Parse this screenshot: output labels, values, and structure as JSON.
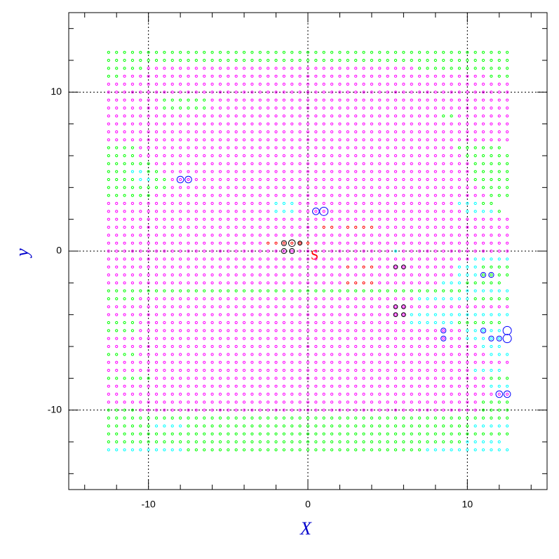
{
  "chart_data": {
    "type": "scatter",
    "xlabel": "X",
    "ylabel": "y",
    "annotation": "S",
    "xlim": [
      -15,
      15
    ],
    "ylim": [
      -15,
      15
    ],
    "xticks": [
      -10,
      0,
      10
    ],
    "yticks": [
      -10,
      0,
      10
    ],
    "xminorticks": [
      -14,
      -12,
      -8,
      -6,
      -4,
      -2,
      2,
      4,
      6,
      8,
      12,
      14
    ],
    "yminorticks": [
      -14,
      -12,
      -8,
      -6,
      -4,
      -2,
      2,
      4,
      6,
      8,
      12,
      14
    ],
    "grid": true,
    "classes": {
      "g": "#00ff00",
      "m": "#ff00ff",
      "c": "#00ffff",
      "r": "#ff0000"
    },
    "points": {
      "x": [
        -12.5,
        -12,
        -11.5,
        -11,
        -10.5,
        -10,
        -9.5,
        -9,
        -8.5,
        -8,
        -7.5,
        -7,
        -6.5,
        -6,
        -5.5,
        -5,
        -4.5,
        -4,
        -3.5,
        -3,
        -2.5,
        -2,
        -1.5,
        -1,
        -0.5,
        0,
        0.5,
        1,
        1.5,
        2,
        2.5,
        3,
        3.5,
        4,
        4.5,
        5,
        5.5,
        6,
        6.5,
        7,
        7.5,
        8,
        8.5,
        9,
        9.5,
        10,
        10.5,
        11,
        11.5,
        12,
        12.5
      ],
      "y": [
        12.5,
        12,
        11.5,
        11,
        10.5,
        10,
        9.5,
        9,
        8.5,
        8,
        7.5,
        7,
        6.5,
        6,
        5.5,
        5,
        4.5,
        4,
        3.5,
        3,
        2.5,
        2,
        1.5,
        1,
        0.5,
        0,
        -0.5,
        -1,
        -1.5,
        -2,
        -2.5,
        -3,
        -3.5,
        -4,
        -4.5,
        -5,
        -5.5,
        -6,
        -6.5,
        -7,
        -7.5,
        -8,
        -8.5,
        -9,
        -9.5,
        -10,
        -10.5,
        -11,
        -11.5,
        -12,
        -12.5
      ],
      "rows": [
        "ggggggggggggggggggggggggggggggggggggggggggggggggggg",
        "ggggggggggggggggggggggggggggggggggggggggggggggggggg",
        "gggggmmmmmmmmmmmmmmmmmmmmmmmmmmmmmmmmmmgggggggggggggg",
        "ggmmmmmmmmmmmmmmmmmmmmmmmmmmmmmmmmmmmmmmmmmmmmmmggg",
        "mmmmmmmmmmmmmmmmmmmmmmmmmmmmmmmmmmmmmmmmmmmmmmmmmmm",
        "mmmmmmmmmmmmmmmmmmmmmmmmmmmmmmmmmmmmmmmmmmmmmmmmmmm",
        "mmmmmmmggggggmmmmmmmmmmmmmmmmmmmmmmmmmmmmmmmmmmmmmm",
        "mmmmmmmggggggmmmmmmmmmmmmmmmmmmmmmmmmmmmmmmmmmmmmmm",
        "mmmmmmmmmmmmmmmmmmmmmmmmmmmmmmmmmmmmmmmmmmggmmmmmmm",
        "mmmmmmmmmmmmmmmmmmmmmmmmmmmmmmmmmmmmmmmmmmmmmmmmmmm",
        "mmmmmmmmmmmmmmmmmmmmmmmmmmmmmmmmmmmmmmmmmmmmmmmmmmm",
        "mmmmmmmmmmmmmmmmmmmmmmmmmmmmmmmmmmmmmmmmmmmmmmmmmmm",
        "ggggmmmmmmmmmmmmmmmmmmmmmmmmmmmmmmmmmmmmmmmmgggggg",
        "ggggmmmmmmmmmmmmmmmmmmmmmmmmmmmmmmmmmmmmmmmmmgggggg",
        "ggggggmmmmmmmmmmmmmmmmmmmmmmmmmmmmmmmmmmmmmmmmggggg",
        "gggccggmmmmmmmmmmmmmmmmmmmmmmmmmmmmmmmmmmmmmmmggggg",
        "ggggccggmmmmmmmmmmmmmmmmmmmmmmmmmmmmmmmmmmmmmmggggg",
        "ggggggggmmmmmmmmmmmmmmmmmmmmmmmmmmmmmmmmmmmmmmmgggg",
        "ggggggmmmmmmmmmmmmmmmmmmmmmmmmmmmmmmmmmmmmmmmmmmggg",
        "mmmmmmmmmmmmmmmmmmmmmcccmmmmmmmmmmmmmmmmmmmmcccgg",
        "mmmmmmmmmmmmmmmmmmmmmcccmmmmmmmmmmmmmmmmmmmmmccccg",
        "mmmmmmmmmmmmmmmmmmmmmmmmmmmmmmmmmmmmmmmmmmmmmmmmmmm",
        "mmmmmmmmmmmmmmmmmmmmmmmmmmmrrmrrrrmmmmmmmmmmmmmmmmm",
        "mmmmmmmmmmmmmmmmmmmmmmmmmmmmmmmmmmmmmmmmmmmmmmmmmmm",
        "mmmmmmmmmmmmmmmmmmmmrrrrrrmmmmmmmmmmmmmmmmmmmmmmmmm",
        "mmmmmmmmmmmmmmmmmmmmmmmmmmmmmmmmmmmmcmmmmmmmmmmmmmm",
        "mmmmmmmmmmmmmmmmmmmmmmmmmmmmmmmmmmmmmmmmmmmmmmccccc",
        "mmmmmmmmmmmmmmmmmmmmmmmmmmmmmmrmrrmmmmmmmmmmcccggggg",
        "mmmmmmmmmmmmmmmmmmmmmmmmmmmmmmmmmmmmmmmmmmmmcccgggg",
        "mmmmmmmmmmmmmmmmmmmmmmmmmmmmmmrrrrmmmmmmmmcccggggg",
        "gggggggggggggggggggggggggggggggggggggggggggggcccccc",
        "ggggmmmmmmmmmmmmmmmmmmmmmmmmmmmmmmmmmmmcccccccggggg",
        "mmmmmmmmmmmmmmmmmmmmmmmmmmmmmmmmmmmmmmmmmmmmmmmmmmm",
        "mmmmmmmmmmmmmmmmmmmmmmmmmmmmmmmmmmmmmmccccccccccccc",
        "ggggmmmmmmmmmmmmmmmmmmmmmmmmmmmmmmmmmmccccccgggggg",
        "ggggmmmmmmmmmmmmmmmmmmmmmmmmmmmmmmmmmmmmmmmmmccccc",
        "mmmmmmmmmmmmmmmmmmmmmmmmmmmmmmmmmmmmmmmmmmmmmccccc",
        "mmmmmmmmmmmmmmmmmmmmmmmmmmmmmmmmmmmmmmmmmmmmmmmccc",
        "ggggmmmmmmmmmmmmmmmmmmmmmmmmmmmmmmmmmmmmmmmmmmmmccc",
        "mmmmmmmmmmmmmmmmmmmmmmmmmmmmmmmmmmmmmmmmmmmmmmmmmmm",
        "mmmmmmmmmmmmmmmmmmmmmmmmmmmmmmmmmmmmmmmmmmmmmmcccc",
        "ggggggmmmmmmmmmmmmmmmmmmmmmmmmmmmmmmmmmmmmmmmmmmggg",
        "mmmmmmmmmmmmmmmmmmmmmmmmmmmmmmmmmmmmmmmmmmmmmmmmccc",
        "mmmmmmmmmmmmmmmmmmmmmmmmmmmmmmmmmmmmmmmmmmmmmmmmmmm",
        "mmmmmmmmmmmmmmmmmmmmmmmmmmmmmmmmmmmmmmmmmmmmmmmgggg",
        "ggggmmmmmmmmmmmmmmmmmmmmmmmmmmmmmmmmmmmmmmmmmmmgggg",
        "ggggggggggggggggggggggggggggggggggggggggggggggggggg",
        "ggggggccccggggggggggggggggggggggggggggggggggggccccc",
        "ggggggggggggggggggggggggggggggggggggggggggggggggggg",
        "gggggggggggggggggggggggggggggggggggggggggggggccccc",
        "ccccccccccggggggggggggggggggggggggggggggcccccccccccc"
      ]
    },
    "markers": [
      {
        "color": "#0000ff",
        "x": [
          -8,
          -7.5,
          0.5,
          1,
          12,
          12.5,
          12.5,
          12.5,
          8.5,
          8.5,
          11,
          11.5,
          12,
          11.5,
          11
        ],
        "y": [
          4.5,
          4.5,
          2.5,
          2.5,
          -9,
          -9,
          -5,
          -5.5,
          -5,
          -5.5,
          -5,
          -5.5,
          -5.5,
          -1.5,
          -1.5
        ],
        "sizes": [
          2,
          2,
          2,
          2.5,
          2,
          2,
          2.5,
          2.5,
          1.5,
          1.5,
          1.5,
          1.5,
          1.5,
          1.5,
          1.5
        ]
      },
      {
        "color": "#000000",
        "x": [
          -1.5,
          -1,
          -1,
          -1.5,
          -0.5,
          5.5,
          6,
          5.5,
          6,
          5.5,
          6
        ],
        "y": [
          0.5,
          0.5,
          0,
          0,
          0.5,
          -1,
          -1,
          -3.5,
          -3.5,
          -4,
          -4
        ],
        "sizes": [
          1.5,
          2,
          1.5,
          1.5,
          1.2,
          1.2,
          1.2,
          1.2,
          1.2,
          1.2,
          1.2
        ]
      }
    ]
  }
}
